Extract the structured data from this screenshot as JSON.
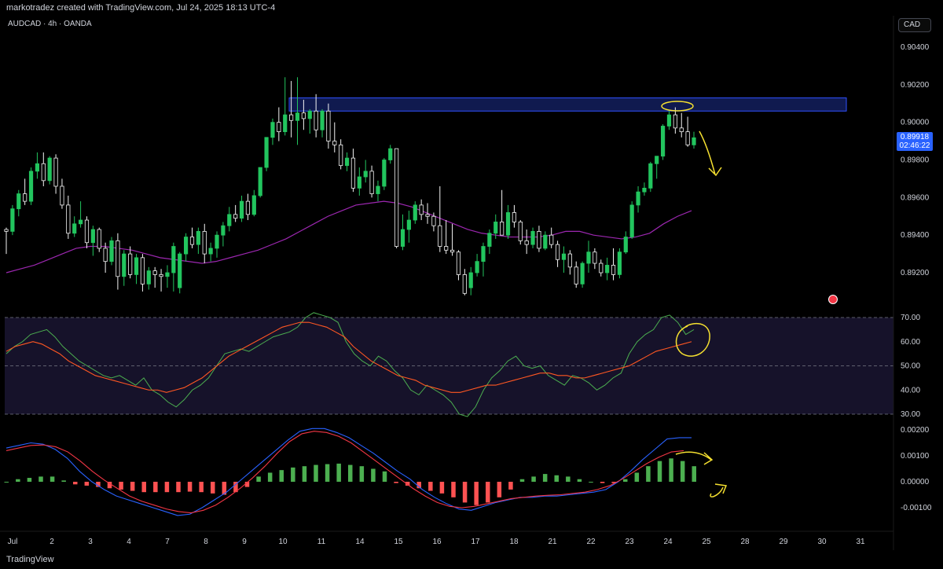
{
  "header": {
    "credit": "markotradez created with TradingView.com, Jul 24, 2025 18:13 UTC-4"
  },
  "symbol_info": "AUDCAD · 4h · OANDA",
  "currency_button": "CAD",
  "current_price": {
    "value": "0.89918",
    "countdown": "02:46:22"
  },
  "footer": {
    "brand": "TradingView"
  },
  "colors": {
    "up": "#22c55e",
    "down": "#f5f5f5",
    "ma": "#9c27b0",
    "rsi": "#4caf50",
    "rsi_ma": "#ff5722",
    "macd": "#2962ff",
    "signal": "#f23645",
    "hist_pos": "#4caf50",
    "hist_neg": "#ff5252",
    "zone": "#1e2f8f",
    "annotation": "#f5e030"
  },
  "chart_data": [
    {
      "type": "candlestick",
      "title": "AUDCAD · 4h · OANDA",
      "price_axis": {
        "ticks": [
          "0.90400",
          "0.90200",
          "0.90000",
          "0.89800",
          "0.89600",
          "0.89400",
          "0.89200"
        ],
        "range": [
          0.8908,
          0.9052
        ]
      },
      "time_axis": {
        "ticks": [
          "Jul",
          "2",
          "3",
          "4",
          "7",
          "8",
          "9",
          "10",
          "11",
          "14",
          "15",
          "16",
          "17",
          "18",
          "21",
          "22",
          "23",
          "24",
          "25",
          "28",
          "29",
          "30",
          "31"
        ]
      },
      "resistance_zone": [
        0.9006,
        0.9013
      ],
      "ohlc": [
        [
          0.8943,
          0.8944,
          0.893,
          0.8942
        ],
        [
          0.8942,
          0.8956,
          0.894,
          0.8954
        ],
        [
          0.8954,
          0.8964,
          0.895,
          0.8962
        ],
        [
          0.8962,
          0.897,
          0.8956,
          0.8958
        ],
        [
          0.8958,
          0.8976,
          0.8956,
          0.8974
        ],
        [
          0.8974,
          0.8984,
          0.897,
          0.8978
        ],
        [
          0.8978,
          0.8984,
          0.8966,
          0.8969
        ],
        [
          0.8969,
          0.8982,
          0.8967,
          0.8981
        ],
        [
          0.8981,
          0.8983,
          0.8962,
          0.8966
        ],
        [
          0.8966,
          0.897,
          0.8954,
          0.8956
        ],
        [
          0.8956,
          0.8961,
          0.8938,
          0.8941
        ],
        [
          0.8941,
          0.895,
          0.8939,
          0.8946
        ],
        [
          0.8946,
          0.8958,
          0.8944,
          0.8948
        ],
        [
          0.8948,
          0.895,
          0.8933,
          0.8936
        ],
        [
          0.8936,
          0.8945,
          0.8929,
          0.8943
        ],
        [
          0.8943,
          0.8944,
          0.8931,
          0.8933
        ],
        [
          0.8933,
          0.8936,
          0.892,
          0.8926
        ],
        [
          0.8926,
          0.8939,
          0.8924,
          0.8937
        ],
        [
          0.8937,
          0.8941,
          0.8911,
          0.8918
        ],
        [
          0.8918,
          0.8932,
          0.8913,
          0.893
        ],
        [
          0.893,
          0.8934,
          0.8917,
          0.8919
        ],
        [
          0.8919,
          0.893,
          0.8914,
          0.8928
        ],
        [
          0.8928,
          0.893,
          0.891,
          0.8914
        ],
        [
          0.8914,
          0.8923,
          0.8911,
          0.8921
        ],
        [
          0.8921,
          0.8923,
          0.8912,
          0.8919
        ],
        [
          0.8919,
          0.8922,
          0.891,
          0.8918
        ],
        [
          0.8918,
          0.8924,
          0.8912,
          0.892
        ],
        [
          0.892,
          0.8936,
          0.891,
          0.8934
        ],
        [
          0.8912,
          0.8931,
          0.8909,
          0.893
        ],
        [
          0.893,
          0.8941,
          0.8926,
          0.8939
        ],
        [
          0.8939,
          0.8944,
          0.8933,
          0.8935
        ],
        [
          0.8935,
          0.8944,
          0.893,
          0.8942
        ],
        [
          0.8942,
          0.8946,
          0.8925,
          0.893
        ],
        [
          0.893,
          0.8936,
          0.8926,
          0.8933
        ],
        [
          0.8933,
          0.8942,
          0.8928,
          0.894
        ],
        [
          0.894,
          0.8947,
          0.8934,
          0.8945
        ],
        [
          0.8945,
          0.8955,
          0.8942,
          0.8951
        ],
        [
          0.8951,
          0.8956,
          0.8947,
          0.8949
        ],
        [
          0.8949,
          0.8961,
          0.8947,
          0.8958
        ],
        [
          0.8958,
          0.8962,
          0.8948,
          0.8951
        ],
        [
          0.8951,
          0.8964,
          0.895,
          0.8961
        ],
        [
          0.8961,
          0.8976,
          0.896,
          0.8976
        ],
        [
          0.8976,
          0.8992,
          0.8974,
          0.8992
        ],
        [
          0.8992,
          0.9002,
          0.8988,
          0.9
        ],
        [
          0.9,
          0.9008,
          0.899,
          0.8995
        ],
        [
          0.8995,
          0.9024,
          0.8993,
          0.9004
        ],
        [
          0.9004,
          0.9022,
          0.8992,
          0.9001
        ],
        [
          0.9001,
          0.9024,
          0.8988,
          0.9005
        ],
        [
          0.9005,
          0.9012,
          0.8996,
          0.9002
        ],
        [
          0.9002,
          0.9007,
          0.8994,
          0.9006
        ],
        [
          0.9006,
          0.9015,
          0.8992,
          0.8996
        ],
        [
          0.8996,
          0.9007,
          0.8992,
          0.9006
        ],
        [
          0.9006,
          0.901,
          0.8986,
          0.899
        ],
        [
          0.899,
          0.9,
          0.8984,
          0.8988
        ],
        [
          0.8988,
          0.8991,
          0.8975,
          0.8977
        ],
        [
          0.8977,
          0.8984,
          0.8974,
          0.8981
        ],
        [
          0.8981,
          0.8986,
          0.8963,
          0.8965
        ],
        [
          0.8965,
          0.8976,
          0.8961,
          0.8971
        ],
        [
          0.8971,
          0.898,
          0.8968,
          0.8974
        ],
        [
          0.8974,
          0.8977,
          0.896,
          0.8962
        ],
        [
          0.8962,
          0.8969,
          0.8958,
          0.8966
        ],
        [
          0.8966,
          0.8981,
          0.8964,
          0.898
        ],
        [
          0.898,
          0.8988,
          0.8978,
          0.8986
        ],
        [
          0.8986,
          0.8986,
          0.8933,
          0.8934
        ],
        [
          0.8934,
          0.8951,
          0.8932,
          0.8943
        ],
        [
          0.8943,
          0.8953,
          0.8936,
          0.8948
        ],
        [
          0.8948,
          0.8958,
          0.8946,
          0.8956
        ],
        [
          0.8956,
          0.8959,
          0.8948,
          0.8951
        ],
        [
          0.8951,
          0.8957,
          0.8946,
          0.895
        ],
        [
          0.895,
          0.8952,
          0.8942,
          0.8945
        ],
        [
          0.8945,
          0.8966,
          0.8931,
          0.8934
        ],
        [
          0.8934,
          0.8948,
          0.893,
          0.8932
        ],
        [
          0.8932,
          0.8946,
          0.8929,
          0.8931
        ],
        [
          0.8931,
          0.8932,
          0.8916,
          0.8919
        ],
        [
          0.8919,
          0.8922,
          0.8908,
          0.8909
        ],
        [
          0.8912,
          0.8923,
          0.8908,
          0.892
        ],
        [
          0.892,
          0.893,
          0.8918,
          0.8926
        ],
        [
          0.8926,
          0.8936,
          0.8918,
          0.8934
        ],
        [
          0.8934,
          0.8943,
          0.893,
          0.8941
        ],
        [
          0.8941,
          0.8951,
          0.8938,
          0.8947
        ],
        [
          0.8947,
          0.8964,
          0.894,
          0.894
        ],
        [
          0.894,
          0.8956,
          0.8938,
          0.8952
        ],
        [
          0.8952,
          0.8956,
          0.8944,
          0.8947
        ],
        [
          0.8947,
          0.8948,
          0.8935,
          0.8937
        ],
        [
          0.8937,
          0.8943,
          0.893,
          0.8935
        ],
        [
          0.8935,
          0.8944,
          0.8933,
          0.8942
        ],
        [
          0.8942,
          0.8945,
          0.8931,
          0.8933
        ],
        [
          0.8933,
          0.8942,
          0.8932,
          0.894
        ],
        [
          0.894,
          0.8944,
          0.8933,
          0.8935
        ],
        [
          0.8935,
          0.8937,
          0.8923,
          0.8927
        ],
        [
          0.8927,
          0.8934,
          0.892,
          0.893
        ],
        [
          0.893,
          0.8932,
          0.8919,
          0.8923
        ],
        [
          0.8923,
          0.8926,
          0.8912,
          0.8914
        ],
        [
          0.8914,
          0.8926,
          0.8912,
          0.8925
        ],
        [
          0.8925,
          0.8937,
          0.892,
          0.8931
        ],
        [
          0.8931,
          0.8933,
          0.8922,
          0.8925
        ],
        [
          0.8925,
          0.8927,
          0.8918,
          0.892
        ],
        [
          0.892,
          0.8928,
          0.8916,
          0.8924
        ],
        [
          0.8924,
          0.8933,
          0.8916,
          0.8919
        ],
        [
          0.8919,
          0.8933,
          0.8917,
          0.8931
        ],
        [
          0.8931,
          0.8942,
          0.893,
          0.8939
        ],
        [
          0.8939,
          0.8958,
          0.8938,
          0.8956
        ],
        [
          0.8956,
          0.8966,
          0.8952,
          0.8963
        ],
        [
          0.8963,
          0.8968,
          0.8961,
          0.8965
        ],
        [
          0.8965,
          0.8979,
          0.8963,
          0.8978
        ],
        [
          0.8978,
          0.8982,
          0.897,
          0.8982
        ],
        [
          0.8982,
          0.8999,
          0.898,
          0.8998
        ],
        [
          0.8998,
          0.9006,
          0.8996,
          0.9004
        ],
        [
          0.9004,
          0.9008,
          0.8994,
          0.8997
        ],
        [
          0.8997,
          0.9005,
          0.8992,
          0.8995
        ],
        [
          0.8995,
          0.9003,
          0.8987,
          0.8988
        ],
        [
          0.8988,
          0.8995,
          0.8986,
          0.89918
        ]
      ],
      "moving_average": [
        0.892,
        0.8922,
        0.8924,
        0.8927,
        0.893,
        0.8933,
        0.8934,
        0.8934,
        0.8933,
        0.8932,
        0.893,
        0.8928,
        0.8927,
        0.8926,
        0.8925,
        0.8926,
        0.8928,
        0.893,
        0.8932,
        0.8935,
        0.8938,
        0.8942,
        0.8946,
        0.895,
        0.8953,
        0.8956,
        0.8957,
        0.8958,
        0.8957,
        0.8955,
        0.8952,
        0.8949,
        0.8946,
        0.8943,
        0.8941,
        0.894,
        0.8939,
        0.8939,
        0.8939,
        0.894,
        0.8942,
        0.8942,
        0.894,
        0.8939,
        0.8938,
        0.8939,
        0.8941,
        0.8946,
        0.895,
        0.8953
      ]
    },
    {
      "type": "line",
      "name_hidden": true,
      "y_axis": {
        "ticks": [
          "70.00",
          "60.00",
          "50.00",
          "40.00",
          "30.00"
        ],
        "range": [
          30,
          70
        ]
      },
      "levels": [
        70,
        50,
        30
      ],
      "rsi": [
        55,
        58,
        60,
        63,
        64,
        65,
        62,
        58,
        55,
        52,
        50,
        48,
        46,
        45,
        46,
        44,
        42,
        45,
        40,
        38,
        35,
        33,
        36,
        40,
        42,
        45,
        50,
        55,
        56,
        57,
        56,
        58,
        60,
        62,
        63,
        64,
        66,
        70,
        72,
        71,
        70,
        68,
        60,
        55,
        52,
        50,
        54,
        52,
        48,
        45,
        40,
        38,
        42,
        40,
        38,
        35,
        30,
        29,
        33,
        40,
        45,
        48,
        52,
        54,
        50,
        49,
        50,
        46,
        44,
        42,
        46,
        45,
        43,
        40,
        42,
        45,
        47,
        55,
        60,
        63,
        65,
        70,
        71,
        68,
        63,
        65
      ],
      "rsi_ma": [
        56,
        58,
        59,
        60,
        59,
        57,
        55,
        52,
        50,
        48,
        46,
        45,
        44,
        43,
        42,
        41,
        40,
        40,
        39,
        40,
        41,
        43,
        45,
        48,
        51,
        54,
        56,
        58,
        60,
        62,
        64,
        66,
        67,
        68,
        68,
        67,
        66,
        64,
        62,
        58,
        55,
        52,
        50,
        48,
        46,
        45,
        44,
        42,
        41,
        40,
        39,
        39,
        40,
        41,
        42,
        42,
        43,
        44,
        45,
        46,
        47,
        47,
        46,
        46,
        45,
        45,
        46,
        47,
        48,
        49,
        50,
        52,
        54,
        56,
        57,
        58,
        59,
        60
      ]
    },
    {
      "type": "line",
      "y_axis": {
        "ticks": [
          "0.00200",
          "0.00100",
          "0.00000",
          "-0.00100"
        ],
        "range": [
          -0.0013,
          0.00215
        ]
      },
      "macd": [
        0.0013,
        0.0014,
        0.0015,
        0.00145,
        0.00125,
        0.0009,
        0.0004,
        0.0,
        -0.0003,
        -0.00055,
        -0.0007,
        -0.00085,
        -0.001,
        -0.00115,
        -0.0013,
        -0.00125,
        -0.001,
        -0.0007,
        -0.0004,
        0.0,
        0.0004,
        0.0008,
        0.0012,
        0.0016,
        0.00195,
        0.00205,
        0.00205,
        0.0019,
        0.0017,
        0.0014,
        0.0011,
        0.00075,
        0.0004,
        0.0001,
        -0.0003,
        -0.0006,
        -0.00085,
        -0.00105,
        -0.0011,
        -0.00095,
        -0.0008,
        -0.0007,
        -0.0006,
        -0.0006,
        -0.00055,
        -0.00055,
        -0.0005,
        -0.00045,
        -0.0004,
        -0.0003,
        0.0,
        0.0004,
        0.00085,
        0.00125,
        0.00165,
        0.0017,
        0.0017
      ],
      "signal": [
        0.0012,
        0.0013,
        0.0014,
        0.00142,
        0.00135,
        0.00115,
        0.0008,
        0.0004,
        5e-05,
        -0.00025,
        -0.00055,
        -0.00075,
        -0.0009,
        -0.00105,
        -0.00115,
        -0.0012,
        -0.0011,
        -0.0009,
        -0.0006,
        -0.00025,
        0.00015,
        0.0006,
        0.0011,
        0.00155,
        0.00185,
        0.00195,
        0.0019,
        0.00175,
        0.0015,
        0.00115,
        0.0008,
        0.00045,
        0.0001,
        -0.00025,
        -0.00055,
        -0.0008,
        -0.00095,
        -0.001,
        -0.00095,
        -0.00085,
        -0.00075,
        -0.00065,
        -0.0006,
        -0.00055,
        -0.00052,
        -0.0005,
        -0.00045,
        -0.0004,
        -0.0003,
        -0.00015,
        0.0001,
        0.0004,
        0.0007,
        0.00095,
        0.00115,
        0.0012
      ],
      "histogram": [
        0.0,
        0.0001,
        0.00015,
        0.0002,
        0.0002,
        5e-05,
        -0.0001,
        -0.00015,
        -0.0002,
        -0.00025,
        -0.0003,
        -0.00035,
        -0.0004,
        -0.0004,
        -0.0004,
        -0.0004,
        -0.00038,
        -0.0004,
        -0.00045,
        -0.0005,
        -0.0004,
        -0.0002,
        0.0002,
        0.00035,
        0.00045,
        0.00055,
        0.0006,
        0.00065,
        0.00068,
        0.0007,
        0.00065,
        0.0006,
        0.0005,
        0.0004,
        -5e-05,
        -0.00015,
        -0.00025,
        -0.00035,
        -0.00045,
        -0.0006,
        -0.0008,
        -0.0009,
        -0.0008,
        -0.0006,
        -0.0003,
        0.0001,
        0.0002,
        0.0003,
        0.00025,
        0.0002,
        0.0001,
        0.0,
        -5e-05,
        -5e-05,
        0.0001,
        0.00035,
        0.0006,
        0.0008,
        0.0009,
        0.0008,
        0.0006
      ]
    }
  ]
}
